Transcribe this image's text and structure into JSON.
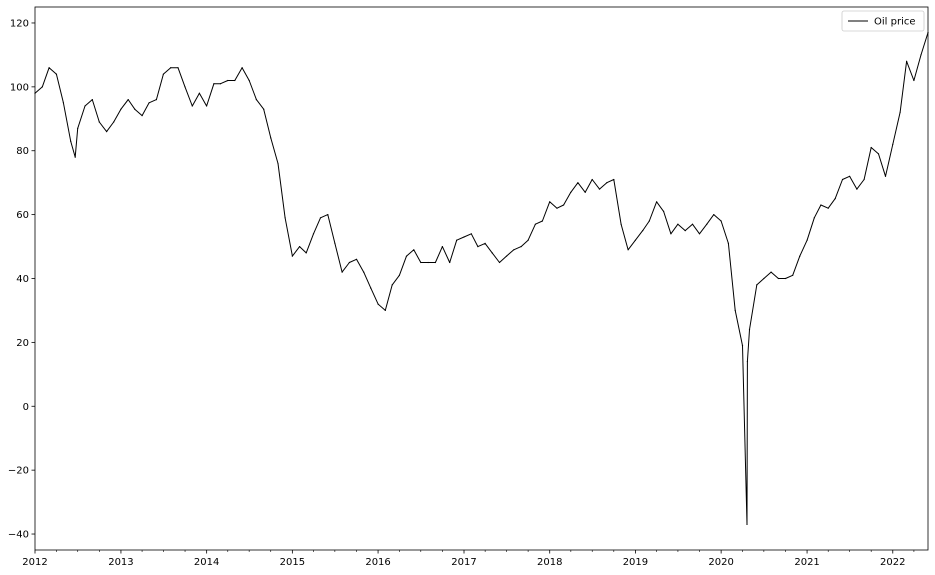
{
  "chart_data": {
    "type": "line",
    "title": "",
    "xlabel": "",
    "ylabel": "",
    "xlim": [
      "2012-01-01",
      "2022-05-31"
    ],
    "ylim": [
      -45,
      125
    ],
    "x_ticks": [
      "2012",
      "2013",
      "2014",
      "2015",
      "2016",
      "2017",
      "2018",
      "2019",
      "2020",
      "2021",
      "2022"
    ],
    "y_ticks": [
      -40,
      -20,
      0,
      20,
      40,
      60,
      80,
      100,
      120
    ],
    "grid": false,
    "legend_position": "top-right",
    "series": [
      {
        "name": "Oil price",
        "color": "#000000",
        "points": [
          [
            "2012-01-01",
            98
          ],
          [
            "2012-02-01",
            100
          ],
          [
            "2012-03-01",
            106
          ],
          [
            "2012-04-01",
            104
          ],
          [
            "2012-05-01",
            95
          ],
          [
            "2012-06-01",
            83
          ],
          [
            "2012-06-20",
            78
          ],
          [
            "2012-07-01",
            87
          ],
          [
            "2012-08-01",
            94
          ],
          [
            "2012-09-01",
            96
          ],
          [
            "2012-10-01",
            89
          ],
          [
            "2012-11-01",
            86
          ],
          [
            "2012-12-01",
            89
          ],
          [
            "2013-01-01",
            93
          ],
          [
            "2013-02-01",
            96
          ],
          [
            "2013-03-01",
            93
          ],
          [
            "2013-04-01",
            91
          ],
          [
            "2013-05-01",
            95
          ],
          [
            "2013-06-01",
            96
          ],
          [
            "2013-07-01",
            104
          ],
          [
            "2013-08-01",
            106
          ],
          [
            "2013-09-01",
            106
          ],
          [
            "2013-10-01",
            100
          ],
          [
            "2013-11-01",
            94
          ],
          [
            "2013-12-01",
            98
          ],
          [
            "2014-01-01",
            94
          ],
          [
            "2014-02-01",
            101
          ],
          [
            "2014-03-01",
            101
          ],
          [
            "2014-04-01",
            102
          ],
          [
            "2014-05-01",
            102
          ],
          [
            "2014-06-01",
            106
          ],
          [
            "2014-07-01",
            102
          ],
          [
            "2014-08-01",
            96
          ],
          [
            "2014-09-01",
            93
          ],
          [
            "2014-10-01",
            84
          ],
          [
            "2014-11-01",
            76
          ],
          [
            "2014-12-01",
            59
          ],
          [
            "2015-01-01",
            47
          ],
          [
            "2015-02-01",
            50
          ],
          [
            "2015-03-01",
            48
          ],
          [
            "2015-04-01",
            54
          ],
          [
            "2015-05-01",
            59
          ],
          [
            "2015-06-01",
            60
          ],
          [
            "2015-07-01",
            51
          ],
          [
            "2015-08-01",
            42
          ],
          [
            "2015-09-01",
            45
          ],
          [
            "2015-10-01",
            46
          ],
          [
            "2015-11-01",
            42
          ],
          [
            "2015-12-01",
            37
          ],
          [
            "2016-01-01",
            32
          ],
          [
            "2016-02-01",
            30
          ],
          [
            "2016-03-01",
            38
          ],
          [
            "2016-04-01",
            41
          ],
          [
            "2016-05-01",
            47
          ],
          [
            "2016-06-01",
            49
          ],
          [
            "2016-07-01",
            45
          ],
          [
            "2016-08-01",
            45
          ],
          [
            "2016-09-01",
            45
          ],
          [
            "2016-10-01",
            50
          ],
          [
            "2016-11-01",
            45
          ],
          [
            "2016-12-01",
            52
          ],
          [
            "2017-01-01",
            53
          ],
          [
            "2017-02-01",
            54
          ],
          [
            "2017-03-01",
            50
          ],
          [
            "2017-04-01",
            51
          ],
          [
            "2017-05-01",
            48
          ],
          [
            "2017-06-01",
            45
          ],
          [
            "2017-07-01",
            47
          ],
          [
            "2017-08-01",
            49
          ],
          [
            "2017-09-01",
            50
          ],
          [
            "2017-10-01",
            52
          ],
          [
            "2017-11-01",
            57
          ],
          [
            "2017-12-01",
            58
          ],
          [
            "2018-01-01",
            64
          ],
          [
            "2018-02-01",
            62
          ],
          [
            "2018-03-01",
            63
          ],
          [
            "2018-04-01",
            67
          ],
          [
            "2018-05-01",
            70
          ],
          [
            "2018-06-01",
            67
          ],
          [
            "2018-07-01",
            71
          ],
          [
            "2018-08-01",
            68
          ],
          [
            "2018-09-01",
            70
          ],
          [
            "2018-10-01",
            71
          ],
          [
            "2018-11-01",
            57
          ],
          [
            "2018-12-01",
            49
          ],
          [
            "2019-01-01",
            52
          ],
          [
            "2019-02-01",
            55
          ],
          [
            "2019-03-01",
            58
          ],
          [
            "2019-04-01",
            64
          ],
          [
            "2019-05-01",
            61
          ],
          [
            "2019-06-01",
            54
          ],
          [
            "2019-07-01",
            57
          ],
          [
            "2019-08-01",
            55
          ],
          [
            "2019-09-01",
            57
          ],
          [
            "2019-10-01",
            54
          ],
          [
            "2019-11-01",
            57
          ],
          [
            "2019-12-01",
            60
          ],
          [
            "2020-01-01",
            58
          ],
          [
            "2020-02-01",
            51
          ],
          [
            "2020-03-01",
            30
          ],
          [
            "2020-04-01",
            19
          ],
          [
            "2020-04-20",
            -37
          ],
          [
            "2020-04-22",
            14
          ],
          [
            "2020-05-01",
            24
          ],
          [
            "2020-06-01",
            38
          ],
          [
            "2020-07-01",
            40
          ],
          [
            "2020-08-01",
            42
          ],
          [
            "2020-09-01",
            40
          ],
          [
            "2020-10-01",
            40
          ],
          [
            "2020-11-01",
            41
          ],
          [
            "2020-12-01",
            47
          ],
          [
            "2021-01-01",
            52
          ],
          [
            "2021-02-01",
            59
          ],
          [
            "2021-03-01",
            63
          ],
          [
            "2021-04-01",
            62
          ],
          [
            "2021-05-01",
            65
          ],
          [
            "2021-06-01",
            71
          ],
          [
            "2021-07-01",
            72
          ],
          [
            "2021-08-01",
            68
          ],
          [
            "2021-09-01",
            71
          ],
          [
            "2021-10-01",
            81
          ],
          [
            "2021-11-01",
            79
          ],
          [
            "2021-12-01",
            72
          ],
          [
            "2022-01-01",
            82
          ],
          [
            "2022-02-01",
            92
          ],
          [
            "2022-03-01",
            108
          ],
          [
            "2022-04-01",
            102
          ],
          [
            "2022-05-01",
            110
          ],
          [
            "2022-05-31",
            117
          ]
        ]
      }
    ]
  }
}
